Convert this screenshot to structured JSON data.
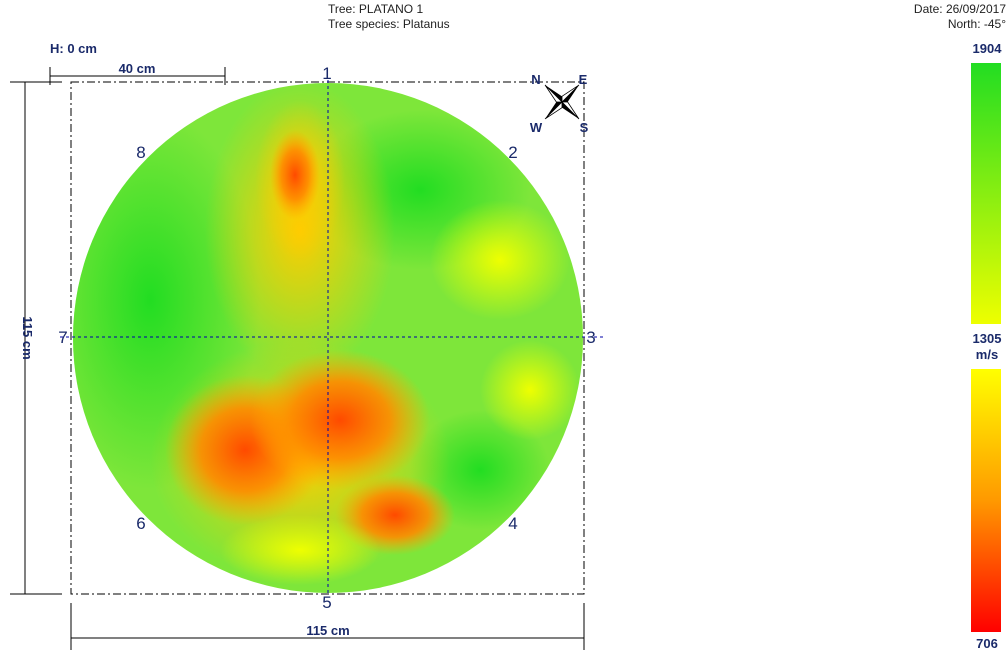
{
  "header": {
    "tree": "Tree: PLATANO 1",
    "species": "Tree species: Platanus",
    "date": "Date: 26/09/2017",
    "north": "North: -45°"
  },
  "height": "H: 0 cm",
  "scale_bar": "40 cm",
  "dim_width": "115 cm",
  "dim_height": "115 cm",
  "sensors": [
    "1",
    "2",
    "3",
    "4",
    "5",
    "6",
    "7",
    "8"
  ],
  "compass": {
    "n": "N",
    "e": "E",
    "w": "W",
    "s": "S"
  },
  "legend": {
    "max": "1904",
    "mid": "1305",
    "unit": "m/s",
    "min": "706"
  },
  "colors": {
    "label": "#1a2a6a",
    "green": "#22dd22",
    "yellow": "#ffff00",
    "orange": "#ff9900",
    "red": "#ff0000"
  }
}
